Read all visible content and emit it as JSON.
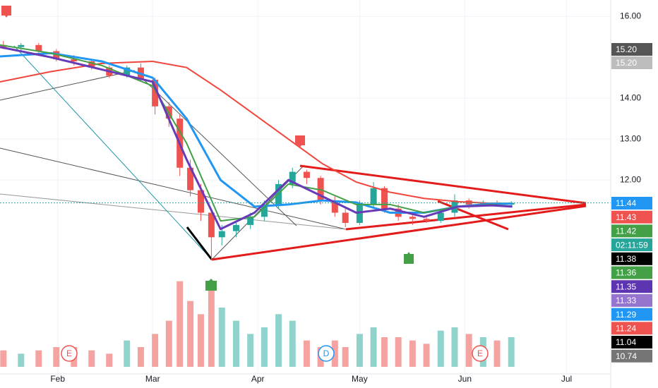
{
  "chart_data": {
    "type": "candlestick",
    "xlim": [
      15,
      195
    ],
    "xticks": [
      {
        "value": 32,
        "label": "Feb"
      },
      {
        "value": 60,
        "label": "Mar"
      },
      {
        "value": 91,
        "label": "Apr"
      },
      {
        "value": 121,
        "label": "May"
      },
      {
        "value": 152,
        "label": "Jun"
      },
      {
        "value": 182,
        "label": "Jul"
      }
    ],
    "ylim": [
      7.26,
      16.4
    ],
    "yticks": [
      {
        "value": 16,
        "label": "16.00"
      },
      {
        "value": 14,
        "label": "14.00"
      },
      {
        "value": 13,
        "label": "13.00"
      },
      {
        "value": 12,
        "label": "12.00"
      }
    ],
    "grid": true,
    "up_color": "#26a69a",
    "down_color": "#ef5350",
    "up_volume_color": "#8fd3cc",
    "down_volume_color": "#f5a3a1",
    "candles": {
      "x": [
        16,
        21.2,
        26.4,
        31.6,
        36.8,
        42,
        47.2,
        52.4,
        56.5,
        60.7,
        64.8,
        68,
        71.1,
        74.2,
        77.3,
        80.4,
        84.6,
        88.8,
        92.9,
        97.1,
        101.2,
        105.4,
        109.5,
        113.7,
        116.8,
        121,
        125.1,
        128.3,
        132.4,
        136.6,
        140.7,
        144.9,
        149,
        153.2,
        157.4,
        161.5,
        165.7
      ],
      "open": [
        15.3,
        15.25,
        15.3,
        15.15,
        14.95,
        14.9,
        14.75,
        14.55,
        14.75,
        14.45,
        13.8,
        13.5,
        12.3,
        11.75,
        11.2,
        10.6,
        10.75,
        10.9,
        11.1,
        11.4,
        11.9,
        12.2,
        12.05,
        11.5,
        11.2,
        10.95,
        11.4,
        11.8,
        11.3,
        11.1,
        11.05,
        11.0,
        11.2,
        11.5,
        11.4,
        11.45,
        11.4
      ],
      "high": [
        15.4,
        15.35,
        15.35,
        15.2,
        15.05,
        14.95,
        14.8,
        14.8,
        14.85,
        14.5,
        13.9,
        13.6,
        12.5,
        11.9,
        11.3,
        10.9,
        11.0,
        11.2,
        11.5,
        12.0,
        12.3,
        12.25,
        12.1,
        11.6,
        11.3,
        11.5,
        11.95,
        11.85,
        11.4,
        11.2,
        11.15,
        11.3,
        11.65,
        11.55,
        11.5,
        11.5,
        11.48
      ],
      "low": [
        15.2,
        15.15,
        15.1,
        14.9,
        14.8,
        14.7,
        14.5,
        14.5,
        14.4,
        13.6,
        13.3,
        12.1,
        11.6,
        11.0,
        10.05,
        10.4,
        10.6,
        10.8,
        11.0,
        11.3,
        11.8,
        11.9,
        11.4,
        11.1,
        10.85,
        10.9,
        11.3,
        11.2,
        11.0,
        10.9,
        10.95,
        10.95,
        11.1,
        11.3,
        11.35,
        11.35,
        11.35
      ],
      "close": [
        15.25,
        15.3,
        15.15,
        14.95,
        14.9,
        14.75,
        14.55,
        14.75,
        14.45,
        13.8,
        13.5,
        12.3,
        11.75,
        11.2,
        10.6,
        10.75,
        10.9,
        11.1,
        11.4,
        11.9,
        12.2,
        12.05,
        11.5,
        11.2,
        10.95,
        11.4,
        11.8,
        11.3,
        11.1,
        11.05,
        11.0,
        11.2,
        11.5,
        11.4,
        11.45,
        11.4,
        11.44
      ],
      "volume": [
        25,
        20,
        25,
        30,
        30,
        25,
        20,
        40,
        30,
        50,
        70,
        130,
        100,
        80,
        120,
        90,
        70,
        50,
        60,
        80,
        70,
        40,
        30,
        40,
        30,
        50,
        60,
        45,
        45,
        40,
        35,
        55,
        60,
        50,
        45,
        40,
        45
      ]
    },
    "vlim": [
      0,
      150
    ],
    "ma_x": [
      15,
      30,
      45,
      60,
      70,
      80,
      90,
      100,
      110,
      120,
      130,
      140,
      150,
      160,
      166
    ],
    "series": [
      {
        "color": "#f0463c",
        "width": 2,
        "values": [
          14.4,
          14.65,
          14.85,
          14.9,
          14.75,
          14.2,
          13.6,
          13.0,
          12.4,
          11.95,
          11.7,
          11.55,
          11.47,
          11.43,
          11.43
        ]
      },
      {
        "color": "#2196f3",
        "width": 3,
        "values": [
          15.02,
          15.1,
          14.9,
          14.5,
          13.5,
          12.0,
          11.35,
          11.4,
          11.5,
          11.45,
          11.2,
          11.2,
          11.35,
          11.42,
          11.42
        ]
      },
      {
        "color": "#43a047",
        "width": 2,
        "values": [
          15.3,
          15.1,
          14.8,
          14.3,
          12.9,
          11.0,
          11.1,
          11.9,
          11.75,
          11.4,
          11.4,
          11.2,
          11.35,
          11.4,
          11.36
        ]
      },
      {
        "color": "#673ab7",
        "width": 3,
        "values": [
          15.25,
          15.0,
          14.7,
          14.4,
          12.5,
          10.8,
          11.2,
          12.0,
          11.6,
          11.2,
          11.3,
          11.1,
          11.35,
          11.38,
          11.35
        ]
      }
    ],
    "last_price": 11.44,
    "last_price_color": "#26a69a",
    "price_labels": [
      {
        "label": "15.20",
        "color": "#555555"
      },
      {
        "label": "15.20",
        "color": "#bdbdbd"
      },
      {
        "label": "11.44",
        "color": "#2196f3"
      },
      {
        "label": "11.43",
        "color": "#ef5350"
      },
      {
        "label": "11.42",
        "color": "#43a047"
      },
      {
        "label": "02:11:59",
        "color": "#26a69a"
      },
      {
        "label": "11.38",
        "color": "#000000"
      },
      {
        "label": "11.36",
        "color": "#43a047"
      },
      {
        "label": "11.35",
        "color": "#5e35b1"
      },
      {
        "label": "11.33",
        "color": "#9575cd"
      },
      {
        "label": "11.29",
        "color": "#2196f3"
      },
      {
        "label": "11.24",
        "color": "#ef5350"
      },
      {
        "label": "11.04",
        "color": "#000000"
      },
      {
        "label": "10.74",
        "color": "#757575"
      }
    ],
    "events": [
      "E",
      "D",
      "E"
    ]
  }
}
